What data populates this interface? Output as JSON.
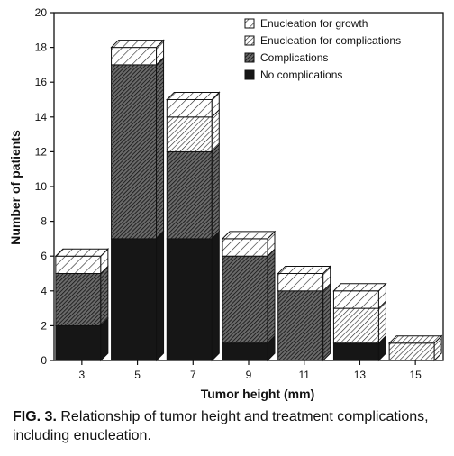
{
  "chart_data": {
    "type": "bar",
    "stacked": true,
    "categories": [
      "3",
      "5",
      "7",
      "9",
      "11",
      "13",
      "15"
    ],
    "xlabel": "Tumor height (mm)",
    "ylabel": "Number of patients",
    "ylim": [
      0,
      20
    ],
    "yticks": [
      0,
      2,
      4,
      6,
      8,
      10,
      12,
      14,
      16,
      18,
      20
    ],
    "legend_position": "top-right",
    "series": [
      {
        "name": "No complications",
        "pattern": "solid-black",
        "values": [
          2,
          7,
          7,
          1,
          0,
          1,
          0
        ]
      },
      {
        "name": "Complications",
        "pattern": "dense-hatch",
        "values": [
          3,
          10,
          5,
          5,
          4,
          0,
          0
        ]
      },
      {
        "name": "Enucleation for complications",
        "pattern": "medium-hatch",
        "values": [
          0,
          0,
          2,
          0,
          0,
          2,
          1
        ]
      },
      {
        "name": "Enucleation for growth",
        "pattern": "sparse-hatch",
        "values": [
          1,
          1,
          1,
          1,
          1,
          1,
          0
        ]
      }
    ],
    "legend_order": [
      "Enucleation for growth",
      "Enucleation for complications",
      "Complications",
      "No complications"
    ]
  },
  "caption": {
    "label": "FIG. 3.",
    "text": "Relationship of tumor height and treatment complications, including enucleation."
  }
}
